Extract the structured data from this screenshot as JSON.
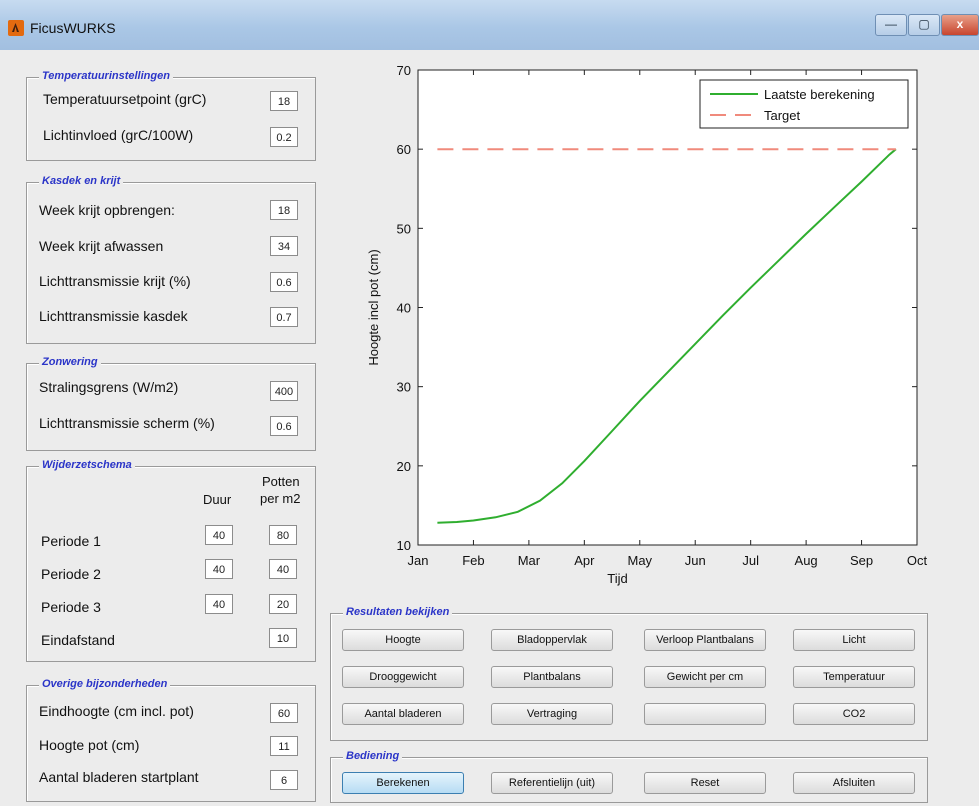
{
  "window": {
    "title": "FicusWURKS",
    "controls": [
      "—",
      "▢",
      "x"
    ]
  },
  "temperature": {
    "title": "Temperatuurinstellingen",
    "rows": [
      {
        "label": "Temperatuursetpoint (grC)",
        "value": "18"
      },
      {
        "label": "Lichtinvloed (grC/100W)",
        "value": "0.2"
      }
    ]
  },
  "kasdek": {
    "title": "Kasdek en krijt",
    "rows": [
      {
        "label": "Week krijt opbrengen:",
        "value": "18"
      },
      {
        "label": "Week krijt afwassen",
        "value": "34"
      },
      {
        "label": "Lichttransmissie krijt (%)",
        "value": "0.6"
      },
      {
        "label": "Lichttransmissie kasdek",
        "value": "0.7"
      }
    ]
  },
  "zonwering": {
    "title": "Zonwering",
    "rows": [
      {
        "label": "Stralingsgrens (W/m2)",
        "value": "400"
      },
      {
        "label": "Lichttransmissie scherm (%)",
        "value": "0.6"
      }
    ]
  },
  "wijderzet": {
    "title": "Wijderzetschema",
    "col_duur": "Duur",
    "col_potten_1": "Potten",
    "col_potten_2": "per m2",
    "rows": [
      {
        "label": "Periode 1",
        "duur": "40",
        "potten": "80"
      },
      {
        "label": "Periode 2",
        "duur": "40",
        "potten": "40"
      },
      {
        "label": "Periode 3",
        "duur": "40",
        "potten": "20"
      }
    ],
    "eind_label": "Eindafstand",
    "eind_value": "10"
  },
  "overige": {
    "title": "Overige bijzonderheden",
    "rows": [
      {
        "label": "Eindhoogte (cm incl. pot)",
        "value": "60"
      },
      {
        "label": "Hoogte pot (cm)",
        "value": "11"
      },
      {
        "label": "Aantal bladeren startplant",
        "value": "6"
      }
    ]
  },
  "results": {
    "title": "Resultaten bekijken",
    "buttons": [
      "Hoogte",
      "Bladoppervlak",
      "Verloop Plantbalans",
      "Licht",
      "Drooggewicht",
      "Plantbalans",
      "Gewicht per cm",
      "Temperatuur",
      "Aantal bladeren",
      "Vertraging",
      "",
      "CO2"
    ]
  },
  "bediening": {
    "title": "Bediening",
    "buttons": [
      "Berekenen",
      "Referentielijn (uit)",
      "Reset",
      "Afsluiten"
    ]
  },
  "colors": {
    "line": "#2fae2f",
    "target": "#f08a7c",
    "groupTitle": "#2b35c8"
  },
  "chart_data": {
    "type": "line",
    "xlabel": "Tijd",
    "ylabel": "Hoogte incl pot (cm)",
    "x_ticks": [
      "Jan",
      "Feb",
      "Mar",
      "Apr",
      "May",
      "Jun",
      "Jul",
      "Aug",
      "Sep",
      "Oct"
    ],
    "y_ticks": [
      10,
      20,
      30,
      40,
      50,
      60,
      70
    ],
    "xlim": [
      0,
      9
    ],
    "ylim": [
      10,
      70
    ],
    "grid": false,
    "legend_position": "top-right",
    "series": [
      {
        "name": "Laatste berekening",
        "style": "solid",
        "points": [
          [
            0.35,
            12.8
          ],
          [
            0.7,
            12.9
          ],
          [
            1.0,
            13.1
          ],
          [
            1.4,
            13.5
          ],
          [
            1.8,
            14.2
          ],
          [
            2.2,
            15.6
          ],
          [
            2.6,
            17.8
          ],
          [
            3.0,
            20.6
          ],
          [
            3.5,
            24.4
          ],
          [
            4.0,
            28.2
          ],
          [
            4.5,
            31.8
          ],
          [
            5.0,
            35.4
          ],
          [
            5.5,
            39.0
          ],
          [
            6.0,
            42.5
          ],
          [
            6.5,
            45.9
          ],
          [
            7.0,
            49.3
          ],
          [
            7.5,
            52.6
          ],
          [
            8.0,
            55.9
          ],
          [
            8.5,
            59.3
          ],
          [
            8.62,
            60.0
          ]
        ]
      },
      {
        "name": "Target",
        "style": "dashed",
        "points": [
          [
            0.35,
            60
          ],
          [
            8.62,
            60
          ]
        ]
      }
    ]
  }
}
